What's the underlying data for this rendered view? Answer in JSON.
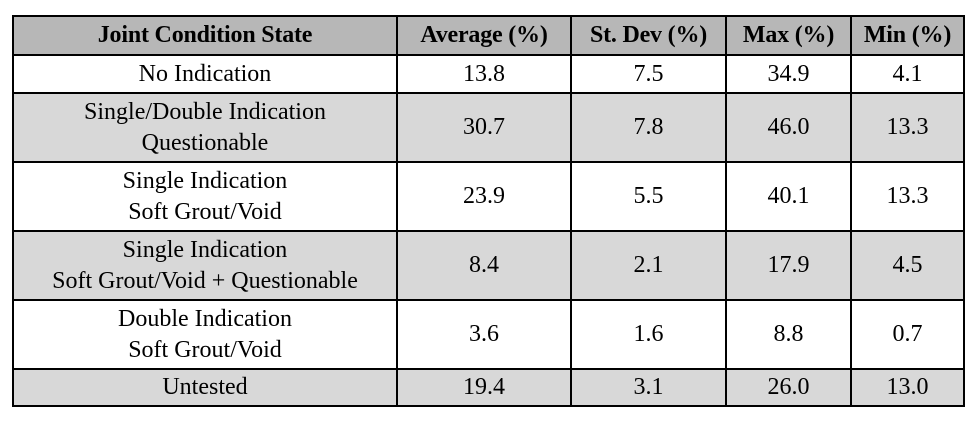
{
  "table": {
    "headers": [
      "Joint Condition State",
      "Average (%)",
      "St. Dev (%)",
      "Max (%)",
      "Min (%)"
    ],
    "rows": [
      {
        "state": [
          "No Indication"
        ],
        "avg": "13.8",
        "sd": "7.5",
        "max": "34.9",
        "min": "4.1"
      },
      {
        "state": [
          "Single/Double Indication",
          "Questionable"
        ],
        "avg": "30.7",
        "sd": "7.8",
        "max": "46.0",
        "min": "13.3"
      },
      {
        "state": [
          "Single Indication",
          "Soft Grout/Void"
        ],
        "avg": "23.9",
        "sd": "5.5",
        "max": "40.1",
        "min": "13.3"
      },
      {
        "state": [
          "Single Indication",
          "Soft Grout/Void + Questionable"
        ],
        "avg": "8.4",
        "sd": "2.1",
        "max": "17.9",
        "min": "4.5"
      },
      {
        "state": [
          "Double Indication",
          "Soft Grout/Void"
        ],
        "avg": "3.6",
        "sd": "1.6",
        "max": "8.8",
        "min": "0.7"
      },
      {
        "state": [
          "Untested"
        ],
        "avg": "19.4",
        "sd": "3.1",
        "max": "26.0",
        "min": "13.0"
      }
    ]
  },
  "colors": {
    "header_bg": "#b7b7b7",
    "shaded_row_bg": "#d8d8d8",
    "plain_row_bg": "#ffffff",
    "border": "#000000"
  }
}
